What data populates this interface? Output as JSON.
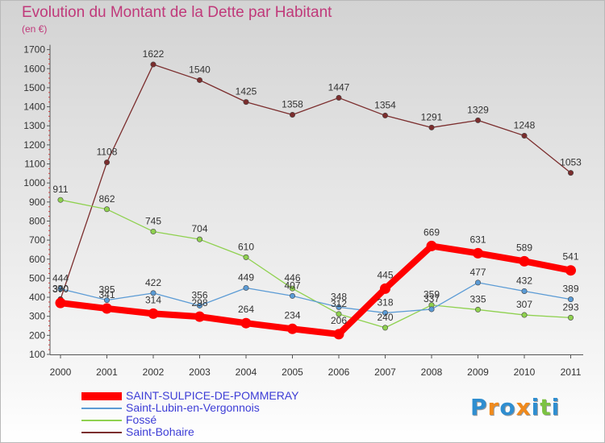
{
  "title": "Evolution du Montant de la Dette par Habitant",
  "subtitle": "(en €)",
  "logo": {
    "text": "Proxiti",
    "colors": [
      "#2f8ed0",
      "#f08a1c",
      "#7cc242"
    ]
  },
  "chart_data": {
    "type": "line",
    "title": "Evolution du Montant de la Dette par Habitant",
    "subtitle": "(en €)",
    "xlabel": "",
    "ylabel": "",
    "categories": [
      "2000",
      "2001",
      "2002",
      "2003",
      "2004",
      "2005",
      "2006",
      "2007",
      "2008",
      "2009",
      "2010",
      "2011"
    ],
    "y_ticks": [
      100,
      200,
      300,
      400,
      500,
      600,
      700,
      800,
      900,
      1000,
      1100,
      1200,
      1300,
      1400,
      1500,
      1600,
      1700
    ],
    "ylim": [
      100,
      1700
    ],
    "grid": false,
    "legend_position": "bottom-left",
    "series": [
      {
        "name": "SAINT-SULPICE-DE-POMMERAY",
        "color": "#ff0000",
        "values": [
          370,
          341,
          314,
          298,
          264,
          234,
          206,
          445,
          669,
          631,
          589,
          541
        ]
      },
      {
        "name": "Saint-Lubin-en-Vergonnois",
        "color": "#5b9bd5",
        "values": [
          444,
          385,
          422,
          356,
          449,
          407,
          348,
          318,
          337,
          477,
          432,
          389
        ]
      },
      {
        "name": "Fossé",
        "color": "#8fd14f",
        "values": [
          911,
          862,
          745,
          704,
          610,
          446,
          312,
          240,
          359,
          335,
          307,
          293
        ]
      },
      {
        "name": "Saint-Bohaire",
        "color": "#7b2d2d",
        "values": [
          390,
          1108,
          1622,
          1540,
          1425,
          1358,
          1447,
          1354,
          1291,
          1329,
          1248,
          1053
        ]
      }
    ]
  }
}
